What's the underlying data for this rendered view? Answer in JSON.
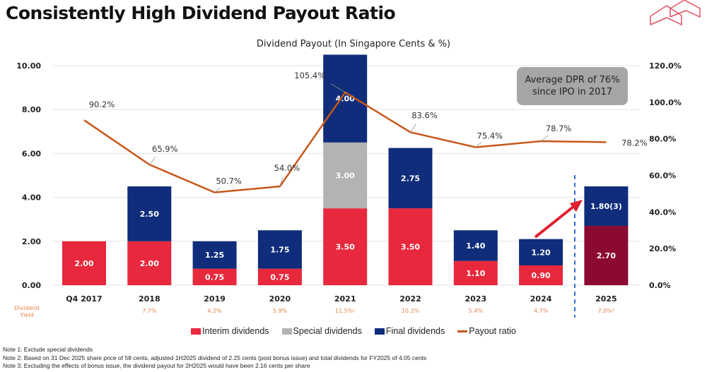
{
  "title": "Consistently High Dividend Payout Ratio",
  "logo": "red-house-outline-logo",
  "callout": [
    "Average DPR of 76%",
    "since IPO in 2017"
  ],
  "yield_label": [
    "Dividend",
    "Yield"
  ],
  "notes": [
    "Note 1: Exclude special dividends",
    "Note 2: Based on 31 Dec 2025 share price of 58 cents, adjusted 1H2025 dividend of 2.25 cents (post bonus issue) and total dividends for FY2025 of 4.05  cents",
    "Note 3: Excluding the effects of bonus issue, the dividend payout for 2H2025 would have been 2.16 cents per share"
  ],
  "chart_data": {
    "type": "bar",
    "title": "Dividend Payout (In Singapore Cents & %)",
    "categories": [
      "Q4 2017",
      "2018",
      "2019",
      "2020",
      "2021",
      "2022",
      "2023",
      "2024",
      "2025"
    ],
    "series": [
      {
        "name": "Interim dividends",
        "kind": "stacked-bar",
        "color": "#e8283c",
        "values": [
          2.0,
          2.0,
          0.75,
          0.75,
          3.5,
          3.5,
          1.1,
          0.9,
          2.7
        ],
        "labels": [
          "2.00",
          "2.00",
          "0.75",
          "0.75",
          "3.50",
          "3.50",
          "1.10",
          "0.90",
          "2.70"
        ]
      },
      {
        "name": "Special dividends",
        "kind": "stacked-bar",
        "color": "#b3b3b3",
        "values": [
          0,
          0,
          0,
          0,
          3.0,
          0,
          0,
          0,
          0
        ],
        "labels": [
          "",
          "",
          "",
          "",
          "3.00",
          "",
          "",
          "",
          ""
        ]
      },
      {
        "name": "Final dividends",
        "kind": "stacked-bar",
        "color": "#0f2d7a",
        "values": [
          0,
          2.5,
          1.25,
          1.75,
          4.0,
          2.75,
          1.4,
          1.2,
          1.8
        ],
        "labels": [
          "",
          "2.50",
          "1.25",
          "1.75",
          "4.00",
          "2.75",
          "1.40",
          "1.20",
          "1.80(3)"
        ]
      },
      {
        "name": "Payout ratio",
        "kind": "line",
        "axis": "right",
        "color": "#c8571a",
        "values": [
          90.2,
          65.9,
          50.7,
          54.0,
          105.4,
          83.6,
          75.4,
          78.7,
          78.2
        ],
        "labels": [
          "90.2%",
          "65.9%",
          "50.7%",
          "54.0%",
          "105.4%",
          "83.6%",
          "75.4%",
          "78.7%",
          "78.2%"
        ]
      }
    ],
    "highlight_color_2025_interim": "#8b0a32",
    "dividend_yield": [
      "",
      "7.7%",
      "4.2%",
      "5.9%",
      "11.5%¹",
      "10.2%",
      "5.4%",
      "4.7%",
      "7.0%²"
    ],
    "ylim_left": [
      0,
      10
    ],
    "yticks_left": [
      "0.00",
      "2.00",
      "4.00",
      "6.00",
      "8.00",
      "10.00"
    ],
    "ylim_right": [
      0,
      120
    ],
    "yticks_right": [
      "0.0%",
      "20.0%",
      "40.0%",
      "60.0%",
      "80.0%",
      "100.0%",
      "120.0%"
    ],
    "grid": true,
    "legend": "bottom"
  }
}
